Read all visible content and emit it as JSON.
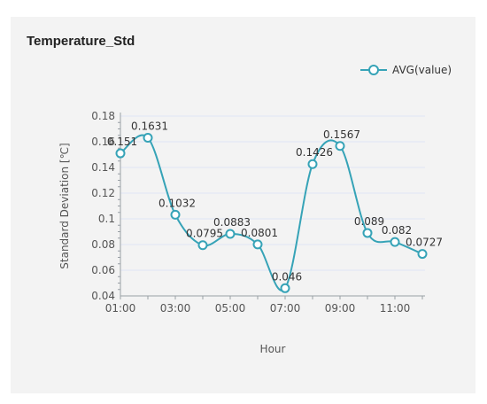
{
  "panel": {
    "title": "Temperature_Std"
  },
  "chart_data": {
    "type": "line",
    "title": "Temperature_Std",
    "xlabel": "Hour",
    "ylabel": "Standard Deviation [℃]",
    "x": [
      "01:00",
      "02:00",
      "03:00",
      "04:00",
      "05:00",
      "06:00",
      "07:00",
      "08:00",
      "09:00",
      "10:00",
      "11:00",
      "12:00"
    ],
    "x_tick_labels": [
      "01:00",
      "03:00",
      "05:00",
      "07:00",
      "09:00",
      "11:00"
    ],
    "y_ticks": [
      "0.04",
      "0.06",
      "0.08",
      "0.1",
      "0.12",
      "0.14",
      "0.16",
      "0.18"
    ],
    "ylim": [
      0.04,
      0.18
    ],
    "series": [
      {
        "name": "AVG(value)",
        "values": [
          0.151,
          0.1631,
          0.1032,
          0.0795,
          0.0883,
          0.0801,
          0.046,
          0.1426,
          0.1567,
          0.089,
          0.082,
          0.0727
        ],
        "labels": [
          "0.151",
          "0.1631",
          "0.1032",
          "0.0795",
          "0.0883",
          "0.0801",
          "0.046",
          "0.1426",
          "0.1567",
          "0.089",
          "0.082",
          "0.0727"
        ]
      }
    ],
    "legend_position": "top-right",
    "grid": true,
    "line_smooth": true,
    "colors": {
      "line": "#36a3b7",
      "grid": "#dfe6f4",
      "marker_fill": "#ffffff"
    }
  }
}
